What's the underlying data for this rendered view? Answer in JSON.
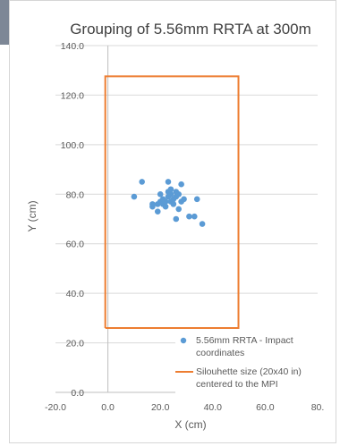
{
  "chart_data": {
    "type": "scatter",
    "title": "Grouping of 5.56mm RRTA at 300m",
    "xlabel": "X (cm)",
    "ylabel": "Y (cm)",
    "xlim": [
      -20,
      80
    ],
    "ylim": [
      0,
      140
    ],
    "x_ticks": [
      "-20.0",
      "0.0",
      "20.0",
      "40.0",
      "60.0",
      "80."
    ],
    "y_ticks": [
      "0.0",
      "20.0",
      "40.0",
      "60.0",
      "80.0",
      "100.0",
      "120.0",
      "140.0"
    ],
    "grid": true,
    "legend_position": "bottom-right",
    "series": [
      {
        "name": "5.56mm RRTA - Impact coordinates",
        "color": "#5b9bd5",
        "x": [
          10,
          13,
          17,
          17,
          19,
          19,
          20,
          20,
          21,
          21,
          22,
          22,
          23,
          23,
          23,
          24,
          24,
          24,
          25,
          25,
          26,
          26,
          26,
          27,
          27,
          28,
          28,
          29,
          31,
          33,
          34,
          36
        ],
        "y": [
          79,
          85,
          75,
          76,
          73,
          76,
          77,
          80,
          76,
          78,
          77,
          75,
          85,
          79,
          81,
          82,
          77,
          80,
          76,
          78,
          70,
          79,
          81,
          74,
          80,
          84,
          77,
          78,
          71,
          71,
          78,
          68
        ]
      },
      {
        "name": "Silouhette size (20x40 in) centered to the MPI",
        "color": "#ed7d31",
        "x": [
          -1,
          49.8,
          49.8,
          -1,
          -1
        ],
        "y": [
          26,
          26,
          127.6,
          127.6,
          26
        ]
      }
    ],
    "legend": [
      {
        "line1": "5.56mm RRTA - Impact",
        "line2": "coordinates"
      },
      {
        "line1": "Silouhette size (20x40 in)",
        "line2": "centered to the MPI"
      }
    ]
  }
}
